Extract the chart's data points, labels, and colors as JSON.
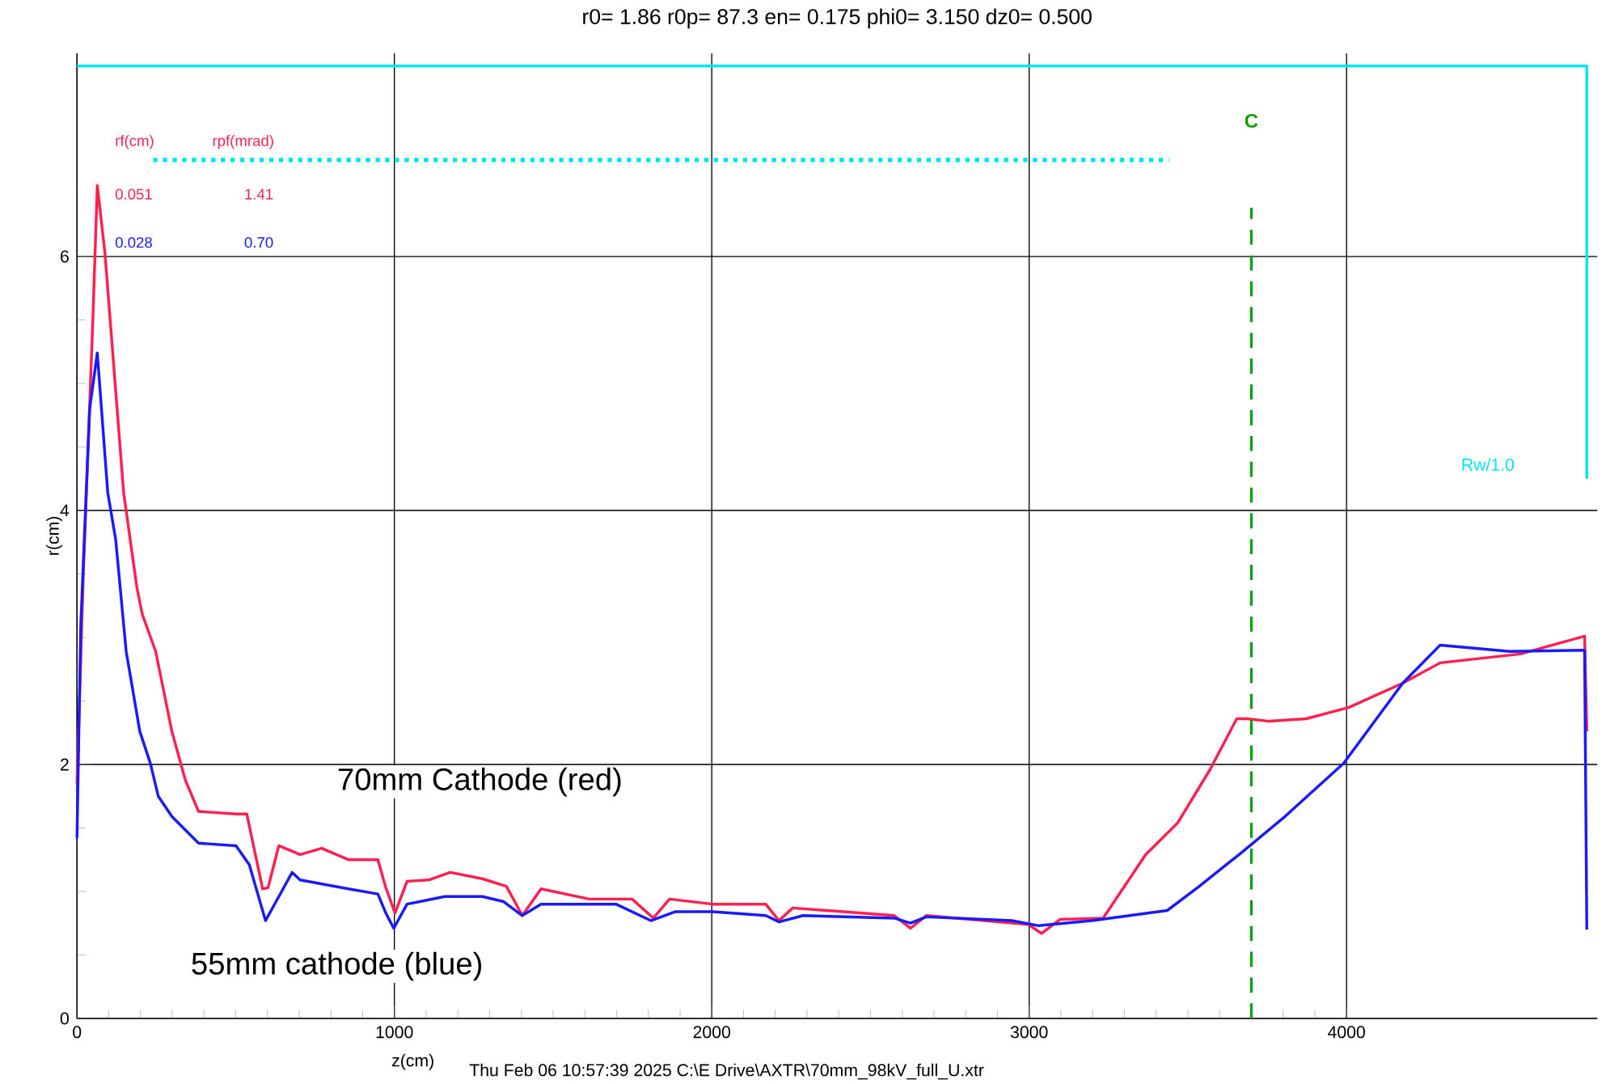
{
  "chart_data": {
    "type": "line",
    "title": "r0= 1.86 r0p= 87.3 en= 0.175 phi0= 3.150 dz0= 0.500",
    "xlabel": "z(cm)",
    "ylabel": "r(cm)",
    "xlim": [
      0,
      4790
    ],
    "ylim": [
      0,
      7.6
    ],
    "xticks": [
      0,
      1000,
      2000,
      3000,
      4000
    ],
    "yticks": [
      0,
      2,
      4,
      6
    ],
    "grid": true,
    "marker": "none",
    "series": [
      {
        "name": "70mm Cathode (red)",
        "color": "#ff2050",
        "line_style": "solid",
        "x": [
          0,
          20,
          50,
          64,
          88,
          147,
          189,
          206,
          248,
          265,
          299,
          341,
          383,
          501,
          535,
          585,
          602,
          636,
          703,
          771,
          855,
          948,
          973,
          1002,
          1040,
          1108,
          1176,
          1277,
          1353,
          1403,
          1462,
          1614,
          1749,
          1816,
          1867,
          2002,
          2170,
          2212,
          2255,
          2575,
          2626,
          2676,
          2997,
          3039,
          3098,
          3233,
          3367,
          3468,
          3570,
          3654,
          3687,
          3756,
          3873,
          4008,
          4177,
          4295,
          4548,
          4750,
          4757
        ],
        "values": [
          1.85,
          3.5,
          5.5,
          6.56,
          6.03,
          4.14,
          3.39,
          3.18,
          2.89,
          2.68,
          2.26,
          1.88,
          1.63,
          1.61,
          1.61,
          1.02,
          1.03,
          1.36,
          1.29,
          1.34,
          1.25,
          1.25,
          1.03,
          0.83,
          1.08,
          1.09,
          1.15,
          1.1,
          1.04,
          0.81,
          1.02,
          0.94,
          0.94,
          0.79,
          0.94,
          0.9,
          0.9,
          0.77,
          0.87,
          0.81,
          0.71,
          0.81,
          0.74,
          0.67,
          0.78,
          0.79,
          1.29,
          1.54,
          1.96,
          2.36,
          2.36,
          2.34,
          2.36,
          2.45,
          2.64,
          2.8,
          2.87,
          3.01,
          2.26
        ]
      },
      {
        "name": "55mm cathode (blue)",
        "color": "#1a1aff",
        "line_style": "solid",
        "x": [
          0,
          12,
          40,
          64,
          97,
          122,
          155,
          198,
          231,
          256,
          299,
          383,
          501,
          543,
          594,
          636,
          678,
          703,
          855,
          948,
          973,
          998,
          1040,
          1159,
          1277,
          1344,
          1403,
          1462,
          1698,
          1808,
          1884,
          2002,
          2170,
          2212,
          2288,
          2575,
          2626,
          2676,
          2946,
          3030,
          3199,
          3435,
          3536,
          3671,
          3806,
          3991,
          4177,
          4295,
          4514,
          4750,
          4757
        ],
        "values": [
          1.42,
          3.1,
          4.8,
          5.24,
          4.14,
          3.77,
          2.89,
          2.26,
          2.01,
          1.75,
          1.59,
          1.38,
          1.36,
          1.21,
          0.77,
          0.96,
          1.15,
          1.09,
          1.02,
          0.98,
          0.83,
          0.71,
          0.9,
          0.96,
          0.96,
          0.92,
          0.81,
          0.9,
          0.9,
          0.77,
          0.84,
          0.84,
          0.81,
          0.76,
          0.81,
          0.79,
          0.75,
          0.8,
          0.77,
          0.73,
          0.77,
          0.85,
          1.04,
          1.31,
          1.59,
          2.01,
          2.64,
          2.94,
          2.89,
          2.9,
          0.7
        ]
      },
      {
        "name": "Rw/1.0",
        "color": "#00e5ee",
        "line_style": "solid",
        "x": [
          0,
          4757,
          4757
        ],
        "values": [
          7.5,
          7.5,
          4.25
        ]
      },
      {
        "color": "#00e5ee",
        "line_style": "dotted",
        "x": [
          240,
          3440
        ],
        "values": [
          6.76,
          6.76
        ]
      }
    ],
    "ref_lines": [
      {
        "axis": "x",
        "value": 3700,
        "label": "C",
        "color": "#00a000",
        "line_style": "dashed"
      }
    ],
    "annotations": [
      "rf(cm)",
      "rpf(mrad)",
      "0.051",
      "1.41",
      "0.028",
      "0.70",
      "Thu Feb 06 10:57:39 2025   C:\\E Drive\\AXTR\\70mm_98kV_full_U.xtr"
    ]
  }
}
